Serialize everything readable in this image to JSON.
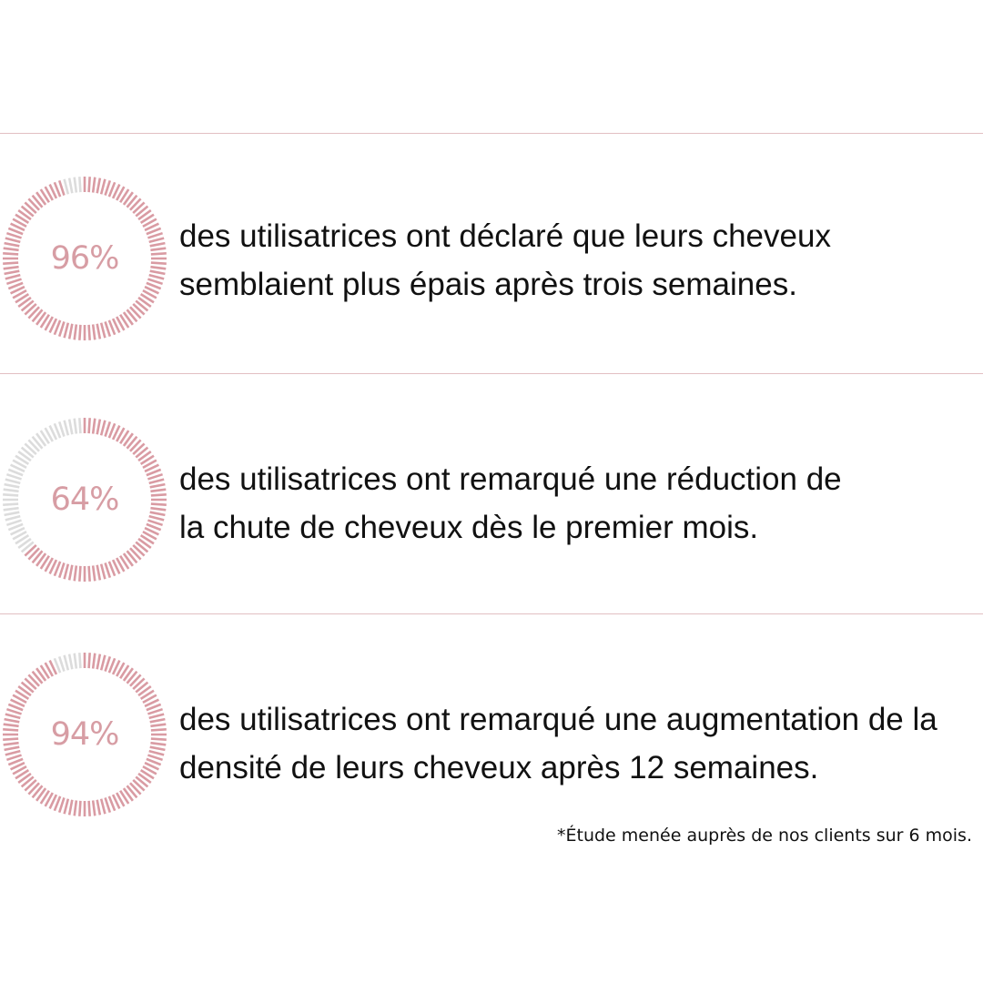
{
  "colors": {
    "accent": "#d99ba3",
    "track": "#dcdcdc",
    "divider": "#e2bfc2",
    "text": "#111111"
  },
  "stats": [
    {
      "percent_label": "96%",
      "percent_value": 96,
      "line1": "des utilisatrices ont déclaré que leurs cheveux",
      "line2": "semblaient plus épais après trois semaines."
    },
    {
      "percent_label": "64%",
      "percent_value": 64,
      "line1": "des utilisatrices ont remarqué une réduction de",
      "line2": "la chute de cheveux dès le premier mois."
    },
    {
      "percent_label": "94%",
      "percent_value": 94,
      "line1": "des utilisatrices ont remarqué une augmentation de la",
      "line2": "densité de leurs cheveux après 12 semaines."
    }
  ],
  "footnote": "*Étude menée auprès de nos clients sur 6 mois."
}
